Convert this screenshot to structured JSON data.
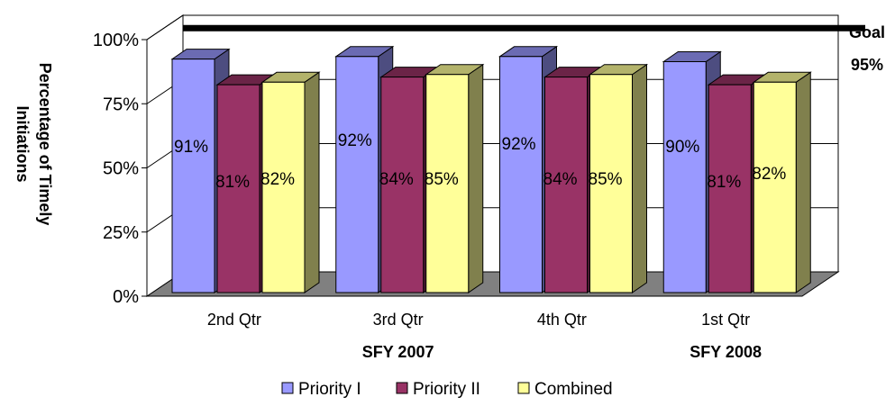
{
  "chart_data": {
    "type": "bar",
    "ylabel_lines": [
      "Percentage of Timely",
      "Initiations"
    ],
    "categories": [
      "2nd Qtr",
      "3rd Qtr",
      "4th Qtr",
      "1st Qtr"
    ],
    "group_labels": [
      {
        "label": "SFY 2007",
        "category_index": 1
      },
      {
        "label": "SFY 2008",
        "category_index": 3
      }
    ],
    "y_ticks": [
      "0%",
      "25%",
      "50%",
      "75%",
      "100%"
    ],
    "ylim": [
      0,
      100
    ],
    "grid": true,
    "legend_position": "bottom",
    "series": [
      {
        "name": "Priority I",
        "color": "#9999ff",
        "values": [
          91,
          92,
          92,
          90
        ],
        "labels": [
          "91%",
          "92%",
          "92%",
          "90%"
        ]
      },
      {
        "name": "Priority II",
        "color": "#993366",
        "values": [
          81,
          84,
          84,
          81
        ],
        "labels": [
          "81%",
          "84%",
          "84%",
          "81%"
        ]
      },
      {
        "name": "Combined",
        "color": "#ffff99",
        "values": [
          82,
          85,
          85,
          82
        ],
        "labels": [
          "82%",
          "85%",
          "85%",
          "82%"
        ]
      }
    ],
    "goal": {
      "value": 95,
      "label_line1": "Goal",
      "label_line2": "95%"
    }
  }
}
